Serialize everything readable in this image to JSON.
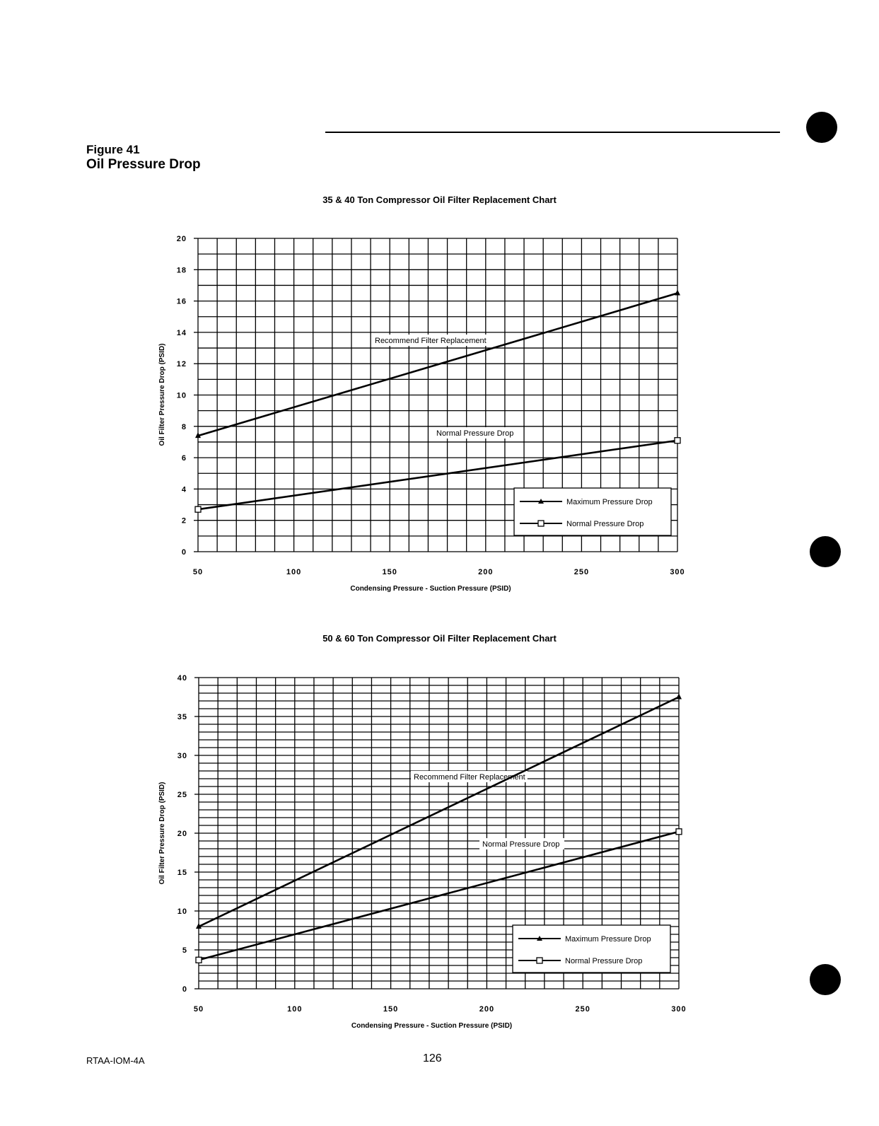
{
  "page": {
    "figure_number": "Figure 41",
    "figure_title": "Oil Pressure Drop",
    "footer_doc": "RTAA-IOM-4A",
    "page_number": "126"
  },
  "chart_data": [
    {
      "type": "line",
      "title": "35 & 40 Ton Compressor Oil Filter Replacement Chart",
      "xlabel": "Condensing Pressure - Suction Pressure (PSID)",
      "ylabel": "Oil Filter Pressure Drop (PSID)",
      "xlim": [
        50,
        300
      ],
      "ylim": [
        0,
        20
      ],
      "xticks": [
        50,
        100,
        150,
        200,
        250,
        300
      ],
      "yticks": [
        0,
        2,
        4,
        6,
        8,
        10,
        12,
        14,
        16,
        18,
        20
      ],
      "grid": true,
      "legend_position": "bottom-right",
      "x": [
        50,
        300
      ],
      "series": [
        {
          "name": "Maximum Pressure Drop",
          "marker": "triangle",
          "values": [
            7.4,
            16.5
          ]
        },
        {
          "name": "Normal Pressure Drop",
          "marker": "open-square",
          "values": [
            2.7,
            7.1
          ]
        }
      ],
      "annotations": [
        "Recommend Filter Replacement",
        "Normal Pressure Drop"
      ]
    },
    {
      "type": "line",
      "title": "50 & 60 Ton Compressor Oil Filter Replacement Chart",
      "xlabel": "Condensing Pressure - Suction Pressure (PSID)",
      "ylabel": "Oil Filter Pressure Drop (PSID)",
      "xlim": [
        50,
        300
      ],
      "ylim": [
        0,
        40
      ],
      "xticks": [
        50,
        100,
        150,
        200,
        250,
        300
      ],
      "yticks": [
        0,
        5,
        10,
        15,
        20,
        25,
        30,
        35,
        40
      ],
      "grid": true,
      "legend_position": "bottom-right",
      "x": [
        50,
        300
      ],
      "series": [
        {
          "name": "Maximum Pressure Drop",
          "marker": "triangle",
          "values": [
            8.0,
            37.5
          ]
        },
        {
          "name": "Normal Pressure Drop",
          "marker": "open-square",
          "values": [
            3.7,
            20.2
          ]
        }
      ],
      "annotations": [
        "Recommend Filter Replacement",
        "Normal Pressure Drop"
      ]
    }
  ]
}
